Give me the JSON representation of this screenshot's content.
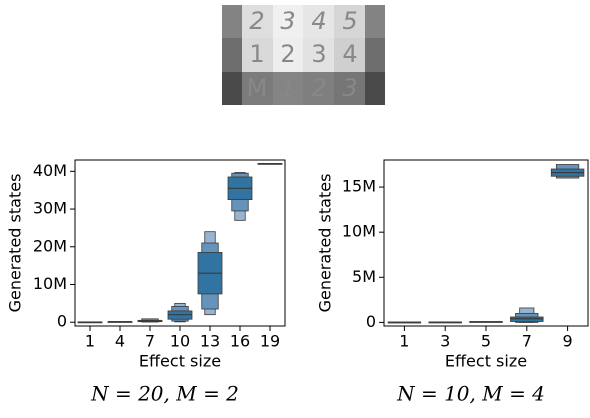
{
  "logo": {
    "rows": [
      [
        "2",
        "3",
        "4",
        "5"
      ],
      [
        "1",
        "2",
        "3",
        "4"
      ],
      [
        "M",
        "1",
        "2",
        "3"
      ]
    ]
  },
  "chart_data": [
    {
      "type": "boxen",
      "ylabel": "Generated states",
      "xlabel": "Effect size",
      "caption": "N = 20, M = 2",
      "categories": [
        "1",
        "4",
        "7",
        "10",
        "13",
        "16",
        "19"
      ],
      "boxes": [
        {
          "median": 50000,
          "levels": [
            [
              20000,
              100000
            ]
          ]
        },
        {
          "median": 100000,
          "levels": [
            [
              50000,
              200000
            ]
          ]
        },
        {
          "median": 300000,
          "levels": [
            [
              150000,
              500000
            ],
            [
              50000,
              900000
            ]
          ]
        },
        {
          "median": 2000000,
          "levels": [
            [
              800000,
              3000000
            ],
            [
              300000,
              4200000
            ],
            [
              100000,
              5000000
            ]
          ]
        },
        {
          "median": 13000000,
          "levels": [
            [
              7500000,
              18500000
            ],
            [
              3500000,
              21000000
            ],
            [
              2000000,
              24000000
            ]
          ]
        },
        {
          "median": 35500000,
          "levels": [
            [
              32500000,
              38500000
            ],
            [
              29500000,
              39500000
            ],
            [
              27000000,
              39700000
            ]
          ]
        },
        {
          "median": 42000000,
          "levels": [
            [
              41900000,
              42100000
            ]
          ]
        }
      ],
      "colors": [
        "#3274a1",
        "#6593ba",
        "#97b4d0"
      ],
      "ylim": [
        -1000000,
        43000000
      ],
      "yticks": [
        0,
        {
          "value": 10000000,
          "label": "10M"
        },
        {
          "value": 20000000,
          "label": "20M"
        },
        {
          "value": 30000000,
          "label": "30M"
        },
        {
          "value": 40000000,
          "label": "40M"
        }
      ]
    },
    {
      "type": "boxen",
      "ylabel": "Generated states",
      "xlabel": "Effect size",
      "caption": "N = 10, M = 4",
      "categories": [
        "1",
        "3",
        "5",
        "7",
        "9"
      ],
      "boxes": [
        {
          "median": 20000,
          "levels": [
            [
              10000,
              40000
            ]
          ]
        },
        {
          "median": 30000,
          "levels": [
            [
              15000,
              50000
            ]
          ]
        },
        {
          "median": 50000,
          "levels": [
            [
              20000,
              100000
            ]
          ]
        },
        {
          "median": 400000,
          "levels": [
            [
              100000,
              600000
            ],
            [
              0,
              1000000
            ],
            [
              0,
              1600000
            ]
          ]
        },
        {
          "median": 16600000,
          "levels": [
            [
              16200000,
              17000000
            ],
            [
              16000000,
              17500000
            ]
          ]
        }
      ],
      "colors": [
        "#3274a1",
        "#6593ba",
        "#97b4d0"
      ],
      "ylim": [
        -400000,
        18000000
      ],
      "yticks": [
        0,
        {
          "value": 5000000,
          "label": "5M"
        },
        {
          "value": 10000000,
          "label": "10M"
        },
        {
          "value": 15000000,
          "label": "15M"
        }
      ]
    }
  ]
}
